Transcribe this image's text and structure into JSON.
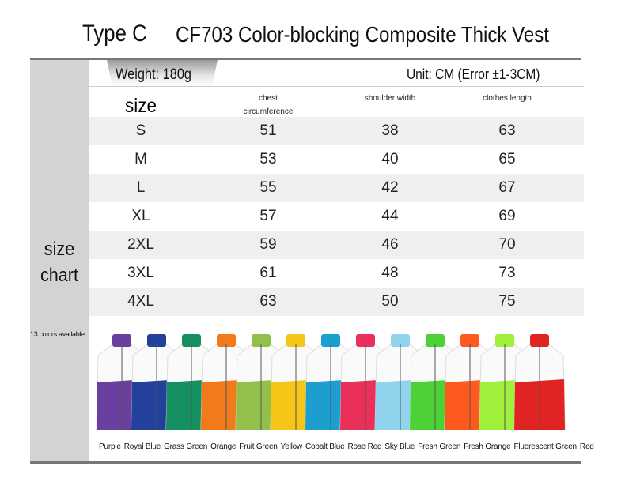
{
  "header": {
    "type": "Type C",
    "title": "CF703 Color-blocking Composite Thick Vest",
    "weight": "Weight: 180g",
    "unit": "Unit: CM (Error ±1-3CM)"
  },
  "side_label": [
    "size",
    "chart"
  ],
  "table": {
    "columns": [
      "size",
      "chest circumference",
      "shoulder width",
      "clothes length"
    ],
    "rows": [
      [
        "S",
        "51",
        "38",
        "63"
      ],
      [
        "M",
        "53",
        "40",
        "65"
      ],
      [
        "L",
        "55",
        "42",
        "67"
      ],
      [
        "XL",
        "57",
        "44",
        "69"
      ],
      [
        "2XL",
        "59",
        "46",
        "70"
      ],
      [
        "3XL",
        "61",
        "48",
        "73"
      ],
      [
        "4XL",
        "63",
        "50",
        "75"
      ]
    ]
  },
  "colors_note": "13 colors available",
  "colors": [
    "Purple",
    "Royal Blue",
    "Grass Green",
    "Orange",
    "Fruit Green",
    "Yellow",
    "Cobalt Blue",
    "Rose Red",
    "Sky Blue",
    "Fresh Green",
    "Fresh Orange",
    "Fluorescent Green",
    "Red"
  ]
}
